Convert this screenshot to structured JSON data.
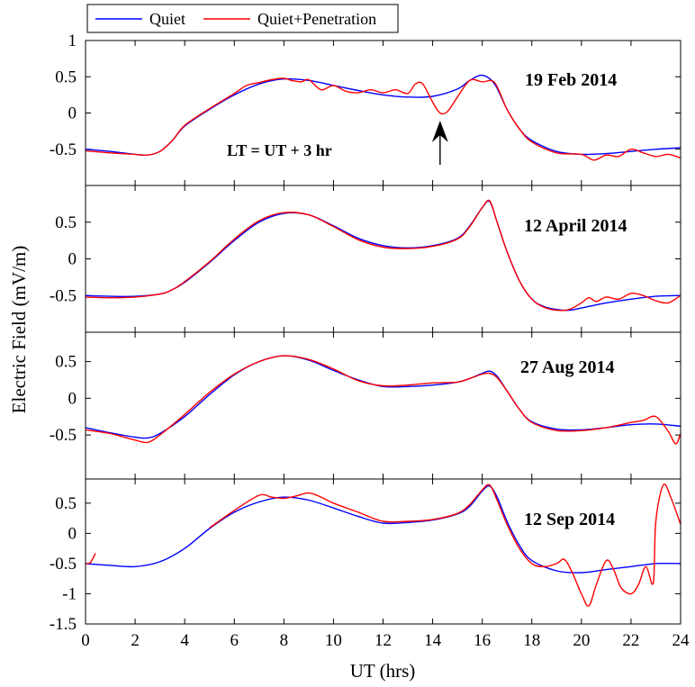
{
  "chart_data": {
    "type": "line",
    "xlabel": "UT (hrs)",
    "ylabel": "Electric Field (mV/m)",
    "xlim": [
      0,
      24
    ],
    "xticks": [
      0,
      2,
      4,
      6,
      8,
      10,
      12,
      14,
      16,
      18,
      20,
      22,
      24
    ],
    "legend": {
      "placement": "top-left",
      "entries": [
        {
          "name": "Quiet",
          "color": "#0000ff"
        },
        {
          "name": "Quiet+Penetration",
          "color": "#ff0000"
        }
      ]
    },
    "panels": [
      {
        "label": "19 Feb 2014",
        "ylim": [
          -1,
          1
        ],
        "yticks": [
          -0.5,
          0,
          0.5,
          1
        ],
        "ytick_labels": [
          "-0.5",
          "0",
          "0.5",
          "1"
        ],
        "annotation": "LT = UT + 3 hr",
        "arrow_x": 14.3,
        "series": [
          {
            "name": "Quiet",
            "x": [
              0,
              1,
              2,
              2.5,
              3,
              3.5,
              4,
              5,
              6,
              7,
              8,
              9,
              10,
              11,
              12,
              13,
              14,
              15,
              15.5,
              16,
              16.5,
              17,
              17.5,
              18,
              19,
              20,
              21,
              22,
              23,
              24
            ],
            "y": [
              -0.5,
              -0.53,
              -0.57,
              -0.58,
              -0.53,
              -0.38,
              -0.18,
              0.05,
              0.25,
              0.4,
              0.47,
              0.45,
              0.38,
              0.31,
              0.25,
              0.22,
              0.23,
              0.33,
              0.45,
              0.52,
              0.4,
              0.05,
              -0.22,
              -0.38,
              -0.53,
              -0.57,
              -0.56,
              -0.53,
              -0.5,
              -0.48
            ]
          },
          {
            "name": "Quiet+Penetration",
            "x": [
              0,
              1,
              2,
              2.5,
              3,
              3.5,
              4,
              5,
              6,
              6.5,
              7,
              7.5,
              8,
              8.3,
              8.7,
              9,
              9.5,
              10,
              10.5,
              11,
              11.5,
              12,
              12.5,
              13,
              13.3,
              13.6,
              14,
              14.3,
              14.6,
              15,
              15.5,
              16,
              16.5,
              17,
              17.5,
              18,
              19,
              20,
              20.5,
              21,
              21.5,
              22,
              22.5,
              23,
              23.5,
              24
            ],
            "y": [
              -0.52,
              -0.55,
              -0.57,
              -0.58,
              -0.53,
              -0.38,
              -0.17,
              0.06,
              0.27,
              0.38,
              0.42,
              0.46,
              0.48,
              0.45,
              0.43,
              0.46,
              0.32,
              0.38,
              0.3,
              0.28,
              0.32,
              0.28,
              0.32,
              0.27,
              0.4,
              0.4,
              0.15,
              0.0,
              0.02,
              0.22,
              0.45,
              0.43,
              0.42,
              0.05,
              -0.22,
              -0.4,
              -0.55,
              -0.57,
              -0.65,
              -0.58,
              -0.6,
              -0.5,
              -0.55,
              -0.6,
              -0.57,
              -0.62
            ]
          }
        ]
      },
      {
        "label": "12 April 2014",
        "ylim": [
          -1,
          1
        ],
        "yticks": [
          -0.5,
          0,
          0.5
        ],
        "ytick_labels": [
          "-0.5",
          "0",
          "0.5"
        ],
        "series": [
          {
            "name": "Quiet",
            "x": [
              0,
              1,
              2,
              3,
              3.5,
              4,
              5,
              6,
              7,
              8,
              9,
              10,
              11,
              12,
              13,
              14,
              15,
              15.5,
              16,
              16.3,
              16.6,
              17,
              17.5,
              18,
              18.5,
              19,
              19.5,
              20,
              21,
              22,
              23,
              24
            ],
            "y": [
              -0.5,
              -0.51,
              -0.51,
              -0.48,
              -0.42,
              -0.32,
              -0.05,
              0.25,
              0.5,
              0.62,
              0.6,
              0.45,
              0.28,
              0.18,
              0.15,
              0.18,
              0.28,
              0.45,
              0.7,
              0.78,
              0.5,
              0.1,
              -0.3,
              -0.55,
              -0.65,
              -0.69,
              -0.7,
              -0.67,
              -0.6,
              -0.55,
              -0.51,
              -0.5
            ]
          },
          {
            "name": "Quiet+Penetration",
            "x": [
              0,
              1,
              2,
              3,
              3.5,
              4,
              5,
              6,
              7,
              8,
              9,
              10,
              11,
              12,
              13,
              14,
              15,
              15.5,
              16,
              16.3,
              16.6,
              17,
              17.5,
              18,
              18.5,
              19,
              19.5,
              20,
              20.3,
              20.6,
              21,
              21.5,
              22,
              22.5,
              23,
              23.5,
              24
            ],
            "y": [
              -0.52,
              -0.53,
              -0.52,
              -0.48,
              -0.42,
              -0.31,
              -0.04,
              0.27,
              0.52,
              0.63,
              0.6,
              0.44,
              0.26,
              0.16,
              0.14,
              0.17,
              0.27,
              0.44,
              0.7,
              0.79,
              0.5,
              0.1,
              -0.3,
              -0.55,
              -0.66,
              -0.7,
              -0.69,
              -0.6,
              -0.53,
              -0.58,
              -0.52,
              -0.55,
              -0.47,
              -0.5,
              -0.57,
              -0.6,
              -0.5
            ]
          }
        ]
      },
      {
        "label": "27 Aug 2014",
        "ylim": [
          -1.1,
          0.9
        ],
        "yticks": [
          -0.5,
          0,
          0.5
        ],
        "ytick_labels": [
          "-0.5",
          "0",
          "0.5"
        ],
        "series": [
          {
            "name": "Quiet",
            "x": [
              0,
              1,
              2,
              2.5,
              3,
              4,
              5,
              6,
              7,
              8,
              9,
              10,
              11,
              12,
              13,
              14,
              15,
              15.5,
              16,
              16.3,
              16.6,
              17,
              17.5,
              18,
              19,
              20,
              21,
              22,
              23,
              24
            ],
            "y": [
              -0.4,
              -0.47,
              -0.53,
              -0.54,
              -0.48,
              -0.25,
              0.05,
              0.32,
              0.5,
              0.58,
              0.52,
              0.38,
              0.25,
              0.16,
              0.16,
              0.18,
              0.22,
              0.27,
              0.34,
              0.37,
              0.3,
              0.1,
              -0.15,
              -0.32,
              -0.42,
              -0.43,
              -0.4,
              -0.36,
              -0.35,
              -0.38
            ]
          },
          {
            "name": "Quiet+Penetration",
            "x": [
              0,
              1,
              2,
              2.5,
              3,
              4,
              5,
              6,
              7,
              8,
              9,
              10,
              11,
              12,
              13,
              14,
              15,
              15.5,
              16,
              16.3,
              16.6,
              17,
              17.5,
              18,
              19,
              20,
              21,
              22,
              22.5,
              23,
              23.5,
              23.8,
              24
            ],
            "y": [
              -0.43,
              -0.48,
              -0.57,
              -0.6,
              -0.5,
              -0.22,
              0.08,
              0.33,
              0.5,
              0.58,
              0.53,
              0.4,
              0.24,
              0.17,
              0.18,
              0.21,
              0.22,
              0.27,
              0.33,
              0.34,
              0.28,
              0.1,
              -0.15,
              -0.33,
              -0.44,
              -0.44,
              -0.4,
              -0.33,
              -0.3,
              -0.25,
              -0.45,
              -0.62,
              -0.48
            ]
          }
        ]
      },
      {
        "label": "12 Sep 2014",
        "ylim": [
          -1.5,
          0.9
        ],
        "yticks": [
          -1.5,
          -1,
          -0.5,
          0,
          0.5
        ],
        "ytick_labels": [
          "-1.5",
          "-1",
          "-0.5",
          "0",
          "0.5"
        ],
        "series": [
          {
            "name": "Quiet",
            "x": [
              0,
              1,
              2,
              3,
              4,
              5,
              6,
              7,
              8,
              9,
              10,
              11,
              12,
              13,
              14,
              15,
              15.5,
              16,
              16.3,
              16.6,
              17,
              17.5,
              18,
              19,
              20,
              21,
              22,
              23,
              24
            ],
            "y": [
              -0.5,
              -0.53,
              -0.55,
              -0.47,
              -0.25,
              0.08,
              0.35,
              0.52,
              0.6,
              0.55,
              0.42,
              0.28,
              0.17,
              0.18,
              0.22,
              0.32,
              0.45,
              0.7,
              0.78,
              0.6,
              0.2,
              -0.2,
              -0.45,
              -0.62,
              -0.65,
              -0.6,
              -0.55,
              -0.5,
              -0.5
            ]
          },
          {
            "name": "Quiet+Penetration",
            "segments": [
              {
                "x": [
                  0,
                  0.2,
                  0.4
                ],
                "y": [
                  -0.5,
                  -0.48,
                  -0.33
                ]
              },
              {
                "x": [
                  5,
                  6,
                  7,
                  7.5,
                  8,
                  8.5,
                  9,
                  9.5,
                  10,
                  11,
                  12,
                  13,
                  14,
                  15,
                  15.5,
                  16,
                  16.3,
                  16.6,
                  17,
                  17.5,
                  18,
                  18.5,
                  19,
                  19.3,
                  19.6,
                  20,
                  20.3,
                  20.6,
                  21,
                  21.3,
                  21.6,
                  22,
                  22.3,
                  22.6,
                  22.9,
                  23,
                  23.3,
                  23.6,
                  24
                ],
                "y": [
                  0.09,
                  0.38,
                  0.63,
                  0.6,
                  0.58,
                  0.62,
                  0.67,
                  0.6,
                  0.5,
                  0.35,
                  0.2,
                  0.2,
                  0.23,
                  0.33,
                  0.48,
                  0.72,
                  0.8,
                  0.55,
                  0.15,
                  -0.25,
                  -0.5,
                  -0.55,
                  -0.5,
                  -0.43,
                  -0.62,
                  -1.0,
                  -1.2,
                  -0.85,
                  -0.45,
                  -0.6,
                  -0.9,
                  -1.0,
                  -0.85,
                  -0.55,
                  -0.82,
                  0.2,
                  0.8,
                  0.6,
                  0.15
                ]
              }
            ]
          }
        ]
      }
    ]
  }
}
